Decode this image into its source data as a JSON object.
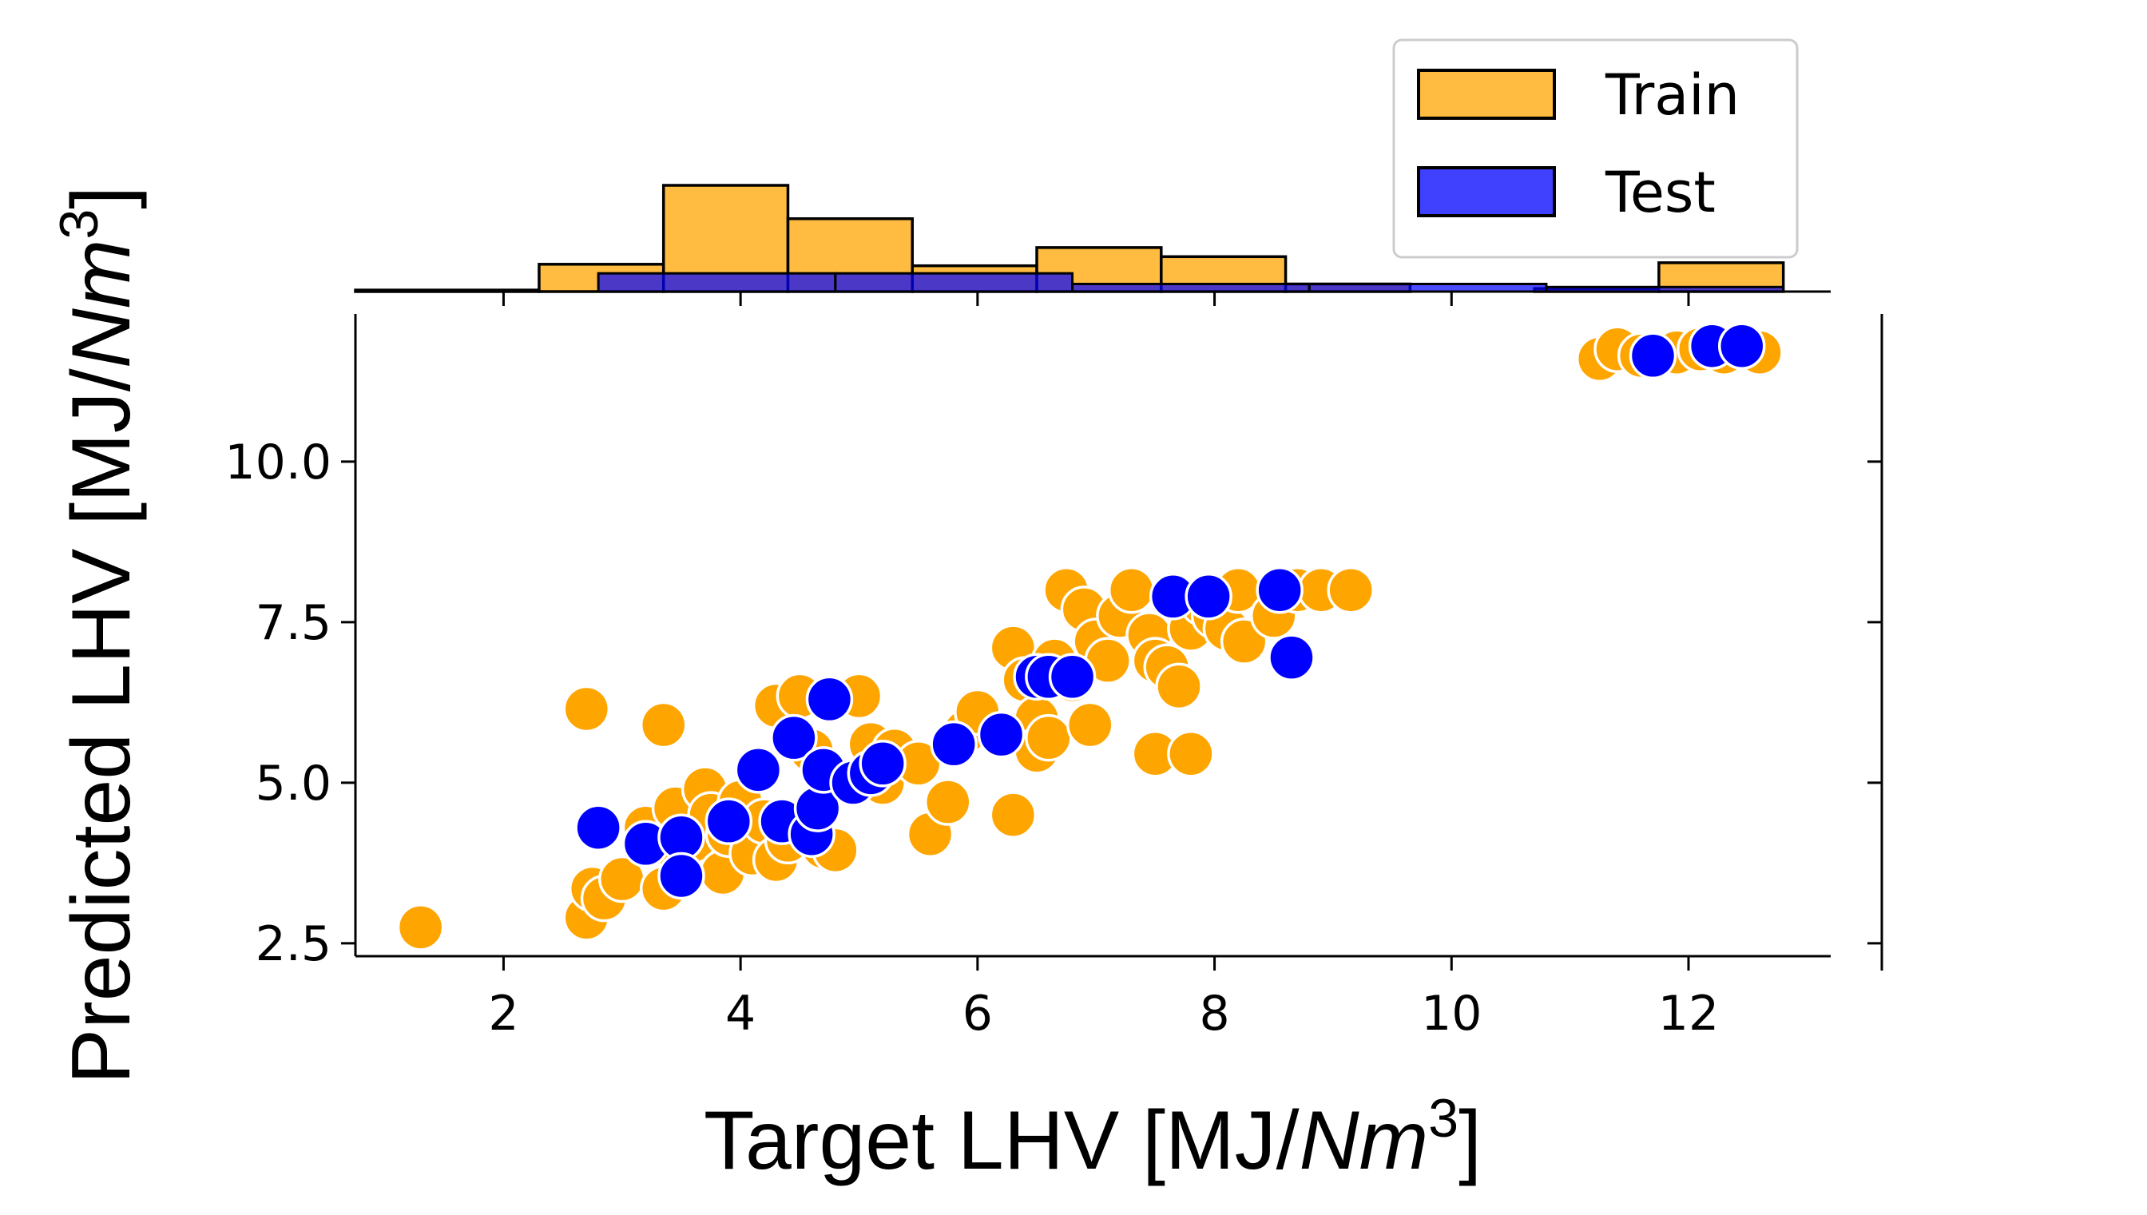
{
  "chart_data": {
    "type": "scatter",
    "xlabel": "Target LHV [MJ/Nm3]",
    "ylabel": "Predicted LHV [MJ/Nm3]",
    "xlabel_parts": {
      "prefix": "Target LHV [MJ/",
      "italic": "Nm",
      "sup": "3",
      "suffix": "]"
    },
    "ylabel_parts": {
      "prefix": "Predicted LHV [MJ/",
      "italic": "Nm",
      "sup": "3",
      "suffix": "]"
    },
    "xlim": [
      0.75,
      13.2
    ],
    "ylim": [
      2.3,
      12.3
    ],
    "xticks": [
      2,
      4,
      6,
      8,
      10,
      12
    ],
    "xtick_labels": [
      "2",
      "4",
      "6",
      "8",
      "10",
      "12"
    ],
    "yticks": [
      2.5,
      5.0,
      7.5,
      10.0
    ],
    "ytick_labels": [
      "2.5",
      "5.0",
      "7.5",
      "10.0"
    ],
    "grid": false,
    "legend_position": "top-right",
    "legend": [
      {
        "label": "Train",
        "color": "#ffa500"
      },
      {
        "label": "Test",
        "color": "#0000ff"
      }
    ],
    "series": [
      {
        "name": "Train",
        "color": "#ffa500",
        "points": [
          [
            1.3,
            2.75
          ],
          [
            2.7,
            6.15
          ],
          [
            3.35,
            5.9
          ],
          [
            2.7,
            2.9
          ],
          [
            2.75,
            3.35
          ],
          [
            2.85,
            3.2
          ],
          [
            3.0,
            3.5
          ],
          [
            3.2,
            4.3
          ],
          [
            3.35,
            3.35
          ],
          [
            3.45,
            4.6
          ],
          [
            3.5,
            3.8
          ],
          [
            3.6,
            4.1
          ],
          [
            3.7,
            4.9
          ],
          [
            3.75,
            4.5
          ],
          [
            3.85,
            3.6
          ],
          [
            3.9,
            4.2
          ],
          [
            4.0,
            4.7
          ],
          [
            4.1,
            3.9
          ],
          [
            4.2,
            4.4
          ],
          [
            4.3,
            3.8
          ],
          [
            4.3,
            6.2
          ],
          [
            4.4,
            4.1
          ],
          [
            4.5,
            6.35
          ],
          [
            4.6,
            5.5
          ],
          [
            4.7,
            4.0
          ],
          [
            4.8,
            3.95
          ],
          [
            4.9,
            5.0
          ],
          [
            5.0,
            6.35
          ],
          [
            5.1,
            5.6
          ],
          [
            5.2,
            5.0
          ],
          [
            5.3,
            5.5
          ],
          [
            5.5,
            5.3
          ],
          [
            5.6,
            4.2
          ],
          [
            5.75,
            4.7
          ],
          [
            5.9,
            5.8
          ],
          [
            6.0,
            6.1
          ],
          [
            6.3,
            4.5
          ],
          [
            6.3,
            7.1
          ],
          [
            6.4,
            6.6
          ],
          [
            6.5,
            6.0
          ],
          [
            6.5,
            5.5
          ],
          [
            6.6,
            5.7
          ],
          [
            6.65,
            6.9
          ],
          [
            6.8,
            6.6
          ],
          [
            6.95,
            5.9
          ],
          [
            6.75,
            8.0
          ],
          [
            6.9,
            7.7
          ],
          [
            7.0,
            7.2
          ],
          [
            7.1,
            6.9
          ],
          [
            7.2,
            7.6
          ],
          [
            7.3,
            8.0
          ],
          [
            7.45,
            7.3
          ],
          [
            7.5,
            6.9
          ],
          [
            7.5,
            5.45
          ],
          [
            7.6,
            6.8
          ],
          [
            7.7,
            6.5
          ],
          [
            7.8,
            5.45
          ],
          [
            7.8,
            7.4
          ],
          [
            7.9,
            7.8
          ],
          [
            8.0,
            7.6
          ],
          [
            8.1,
            7.4
          ],
          [
            8.2,
            8.0
          ],
          [
            8.25,
            7.2
          ],
          [
            8.5,
            7.6
          ],
          [
            8.7,
            8.0
          ],
          [
            8.9,
            8.0
          ],
          [
            9.15,
            8.0
          ],
          [
            11.25,
            11.6
          ],
          [
            11.4,
            11.75
          ],
          [
            11.6,
            11.65
          ],
          [
            11.9,
            11.7
          ],
          [
            12.1,
            11.75
          ],
          [
            12.3,
            11.7
          ],
          [
            12.6,
            11.7
          ]
        ]
      },
      {
        "name": "Test",
        "color": "#0000ff",
        "points": [
          [
            2.8,
            4.3
          ],
          [
            3.2,
            4.05
          ],
          [
            3.5,
            4.15
          ],
          [
            3.5,
            3.55
          ],
          [
            3.9,
            4.4
          ],
          [
            4.15,
            5.2
          ],
          [
            4.35,
            4.4
          ],
          [
            4.45,
            5.7
          ],
          [
            4.6,
            4.2
          ],
          [
            4.65,
            4.6
          ],
          [
            4.7,
            5.2
          ],
          [
            4.75,
            6.3
          ],
          [
            4.95,
            5.0
          ],
          [
            5.1,
            5.15
          ],
          [
            5.2,
            5.3
          ],
          [
            5.8,
            5.6
          ],
          [
            6.2,
            5.75
          ],
          [
            6.5,
            6.65
          ],
          [
            6.6,
            6.65
          ],
          [
            6.8,
            6.65
          ],
          [
            7.65,
            7.9
          ],
          [
            7.95,
            7.9
          ],
          [
            8.55,
            8.0
          ],
          [
            8.65,
            6.95
          ],
          [
            11.7,
            11.65
          ],
          [
            12.2,
            11.8
          ],
          [
            12.45,
            11.8
          ]
        ]
      }
    ],
    "hist_top": {
      "bin_edges": [
        0.75,
        2.3,
        3.35,
        4.4,
        5.45,
        6.5,
        7.55,
        8.6,
        9.65,
        10.7,
        11.75,
        12.8
      ],
      "train_heights": [
        0.01,
        0.18,
        0.7,
        0.48,
        0.17,
        0.29,
        0.23,
        0.05,
        0.0,
        0.02,
        0.19
      ],
      "test_edges": [
        0.75,
        2.8,
        4.8,
        6.8,
        8.8,
        10.8,
        12.8
      ],
      "test_heights": [
        0.0,
        0.12,
        0.12,
        0.05,
        0.05,
        0.03
      ],
      "heights_unit": "relative"
    }
  }
}
